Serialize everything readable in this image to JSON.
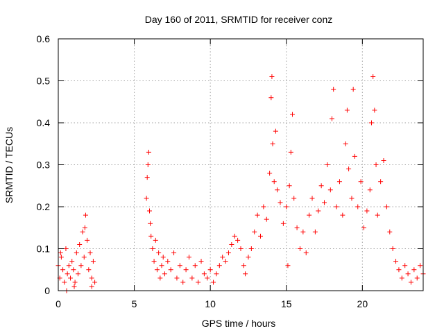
{
  "chart_data": {
    "type": "scatter",
    "title": "Day 160 of 2011, SRMTID for receiver conz",
    "xlabel": "GPS time / hours",
    "ylabel": "SRMTID / TECUs",
    "xlim": [
      0,
      24
    ],
    "ylim": [
      0,
      0.6
    ],
    "xticks": [
      0,
      5,
      10,
      15,
      20
    ],
    "yticks": [
      0,
      0.1,
      0.2,
      0.3,
      0.4,
      0.5,
      0.6
    ],
    "xtick_labels": [
      "0",
      "5",
      "10",
      "15",
      "20"
    ],
    "ytick_labels": [
      "0",
      "0.1",
      "0.2",
      "0.3",
      "0.4",
      "0.5",
      "0.6"
    ],
    "grid": true,
    "marker": "+",
    "colors": {
      "marker": "#ff0000",
      "grid": "#a0a0a0",
      "axis": "#000000"
    },
    "series": [
      {
        "name": "SRMTID",
        "points": [
          [
            0.0,
            0.06
          ],
          [
            0.1,
            0.03
          ],
          [
            0.2,
            0.08
          ],
          [
            0.3,
            0.05
          ],
          [
            0.4,
            0.02
          ],
          [
            0.5,
            0.1
          ],
          [
            0.6,
            0.04
          ],
          [
            0.7,
            0.06
          ],
          [
            0.8,
            0.03
          ],
          [
            0.9,
            0.07
          ],
          [
            1.0,
            0.05
          ],
          [
            1.1,
            0.02
          ],
          [
            1.2,
            0.09
          ],
          [
            1.3,
            0.04
          ],
          [
            1.4,
            0.11
          ],
          [
            1.5,
            0.06
          ],
          [
            1.6,
            0.14
          ],
          [
            1.7,
            0.08
          ],
          [
            1.8,
            0.18
          ],
          [
            1.9,
            0.12
          ],
          [
            2.0,
            0.05
          ],
          [
            2.1,
            0.09
          ],
          [
            2.2,
            0.03
          ],
          [
            2.3,
            0.07
          ],
          [
            2.4,
            0.02
          ],
          [
            1.75,
            0.15
          ],
          [
            0.15,
            0.09
          ],
          [
            0.55,
            0.0
          ],
          [
            1.05,
            0.01
          ],
          [
            2.2,
            0.01
          ],
          [
            5.8,
            0.22
          ],
          [
            5.85,
            0.27
          ],
          [
            5.9,
            0.3
          ],
          [
            5.95,
            0.33
          ],
          [
            6.0,
            0.19
          ],
          [
            6.05,
            0.16
          ],
          [
            6.1,
            0.13
          ],
          [
            6.2,
            0.1
          ],
          [
            6.3,
            0.07
          ],
          [
            6.4,
            0.12
          ],
          [
            6.5,
            0.05
          ],
          [
            6.6,
            0.09
          ],
          [
            6.7,
            0.03
          ],
          [
            6.8,
            0.06
          ],
          [
            6.9,
            0.08
          ],
          [
            7.0,
            0.04
          ],
          [
            7.2,
            0.07
          ],
          [
            7.4,
            0.05
          ],
          [
            7.6,
            0.09
          ],
          [
            7.8,
            0.03
          ],
          [
            8.0,
            0.06
          ],
          [
            8.2,
            0.02
          ],
          [
            8.4,
            0.05
          ],
          [
            8.6,
            0.08
          ],
          [
            8.8,
            0.03
          ],
          [
            9.0,
            0.06
          ],
          [
            9.2,
            0.02
          ],
          [
            9.4,
            0.07
          ],
          [
            9.6,
            0.04
          ],
          [
            9.8,
            0.03
          ],
          [
            10.0,
            0.05
          ],
          [
            10.2,
            0.02
          ],
          [
            10.4,
            0.04
          ],
          [
            10.6,
            0.06
          ],
          [
            10.8,
            0.08
          ],
          [
            11.0,
            0.07
          ],
          [
            11.2,
            0.09
          ],
          [
            11.4,
            0.11
          ],
          [
            11.6,
            0.13
          ],
          [
            11.8,
            0.12
          ],
          [
            12.0,
            0.1
          ],
          [
            12.2,
            0.06
          ],
          [
            12.3,
            0.04
          ],
          [
            12.5,
            0.08
          ],
          [
            12.7,
            0.1
          ],
          [
            12.9,
            0.14
          ],
          [
            13.1,
            0.18
          ],
          [
            13.3,
            0.13
          ],
          [
            13.5,
            0.2
          ],
          [
            13.7,
            0.17
          ],
          [
            13.9,
            0.28
          ],
          [
            14.0,
            0.46
          ],
          [
            14.05,
            0.51
          ],
          [
            14.1,
            0.35
          ],
          [
            14.2,
            0.26
          ],
          [
            14.3,
            0.38
          ],
          [
            14.4,
            0.24
          ],
          [
            14.6,
            0.21
          ],
          [
            14.8,
            0.16
          ],
          [
            15.0,
            0.2
          ],
          [
            15.1,
            0.06
          ],
          [
            15.2,
            0.25
          ],
          [
            15.3,
            0.33
          ],
          [
            15.4,
            0.42
          ],
          [
            15.5,
            0.22
          ],
          [
            15.7,
            0.15
          ],
          [
            15.9,
            0.1
          ],
          [
            16.1,
            0.14
          ],
          [
            16.3,
            0.09
          ],
          [
            16.5,
            0.18
          ],
          [
            16.7,
            0.22
          ],
          [
            16.9,
            0.14
          ],
          [
            17.1,
            0.19
          ],
          [
            17.3,
            0.25
          ],
          [
            17.5,
            0.21
          ],
          [
            17.7,
            0.3
          ],
          [
            17.9,
            0.24
          ],
          [
            18.0,
            0.41
          ],
          [
            18.1,
            0.48
          ],
          [
            18.3,
            0.2
          ],
          [
            18.5,
            0.26
          ],
          [
            18.7,
            0.18
          ],
          [
            18.9,
            0.35
          ],
          [
            19.0,
            0.43
          ],
          [
            19.1,
            0.29
          ],
          [
            19.3,
            0.22
          ],
          [
            19.4,
            0.48
          ],
          [
            19.5,
            0.32
          ],
          [
            19.7,
            0.2
          ],
          [
            19.9,
            0.26
          ],
          [
            20.1,
            0.15
          ],
          [
            20.3,
            0.19
          ],
          [
            20.5,
            0.24
          ],
          [
            20.6,
            0.4
          ],
          [
            20.7,
            0.51
          ],
          [
            20.8,
            0.43
          ],
          [
            20.9,
            0.3
          ],
          [
            21.0,
            0.18
          ],
          [
            21.2,
            0.26
          ],
          [
            21.4,
            0.31
          ],
          [
            21.6,
            0.2
          ],
          [
            21.8,
            0.14
          ],
          [
            22.0,
            0.1
          ],
          [
            22.2,
            0.07
          ],
          [
            22.4,
            0.05
          ],
          [
            22.6,
            0.03
          ],
          [
            22.8,
            0.06
          ],
          [
            23.0,
            0.04
          ],
          [
            23.2,
            0.02
          ],
          [
            23.4,
            0.05
          ],
          [
            23.6,
            0.03
          ],
          [
            23.8,
            0.06
          ],
          [
            24.0,
            0.04
          ]
        ]
      }
    ]
  }
}
